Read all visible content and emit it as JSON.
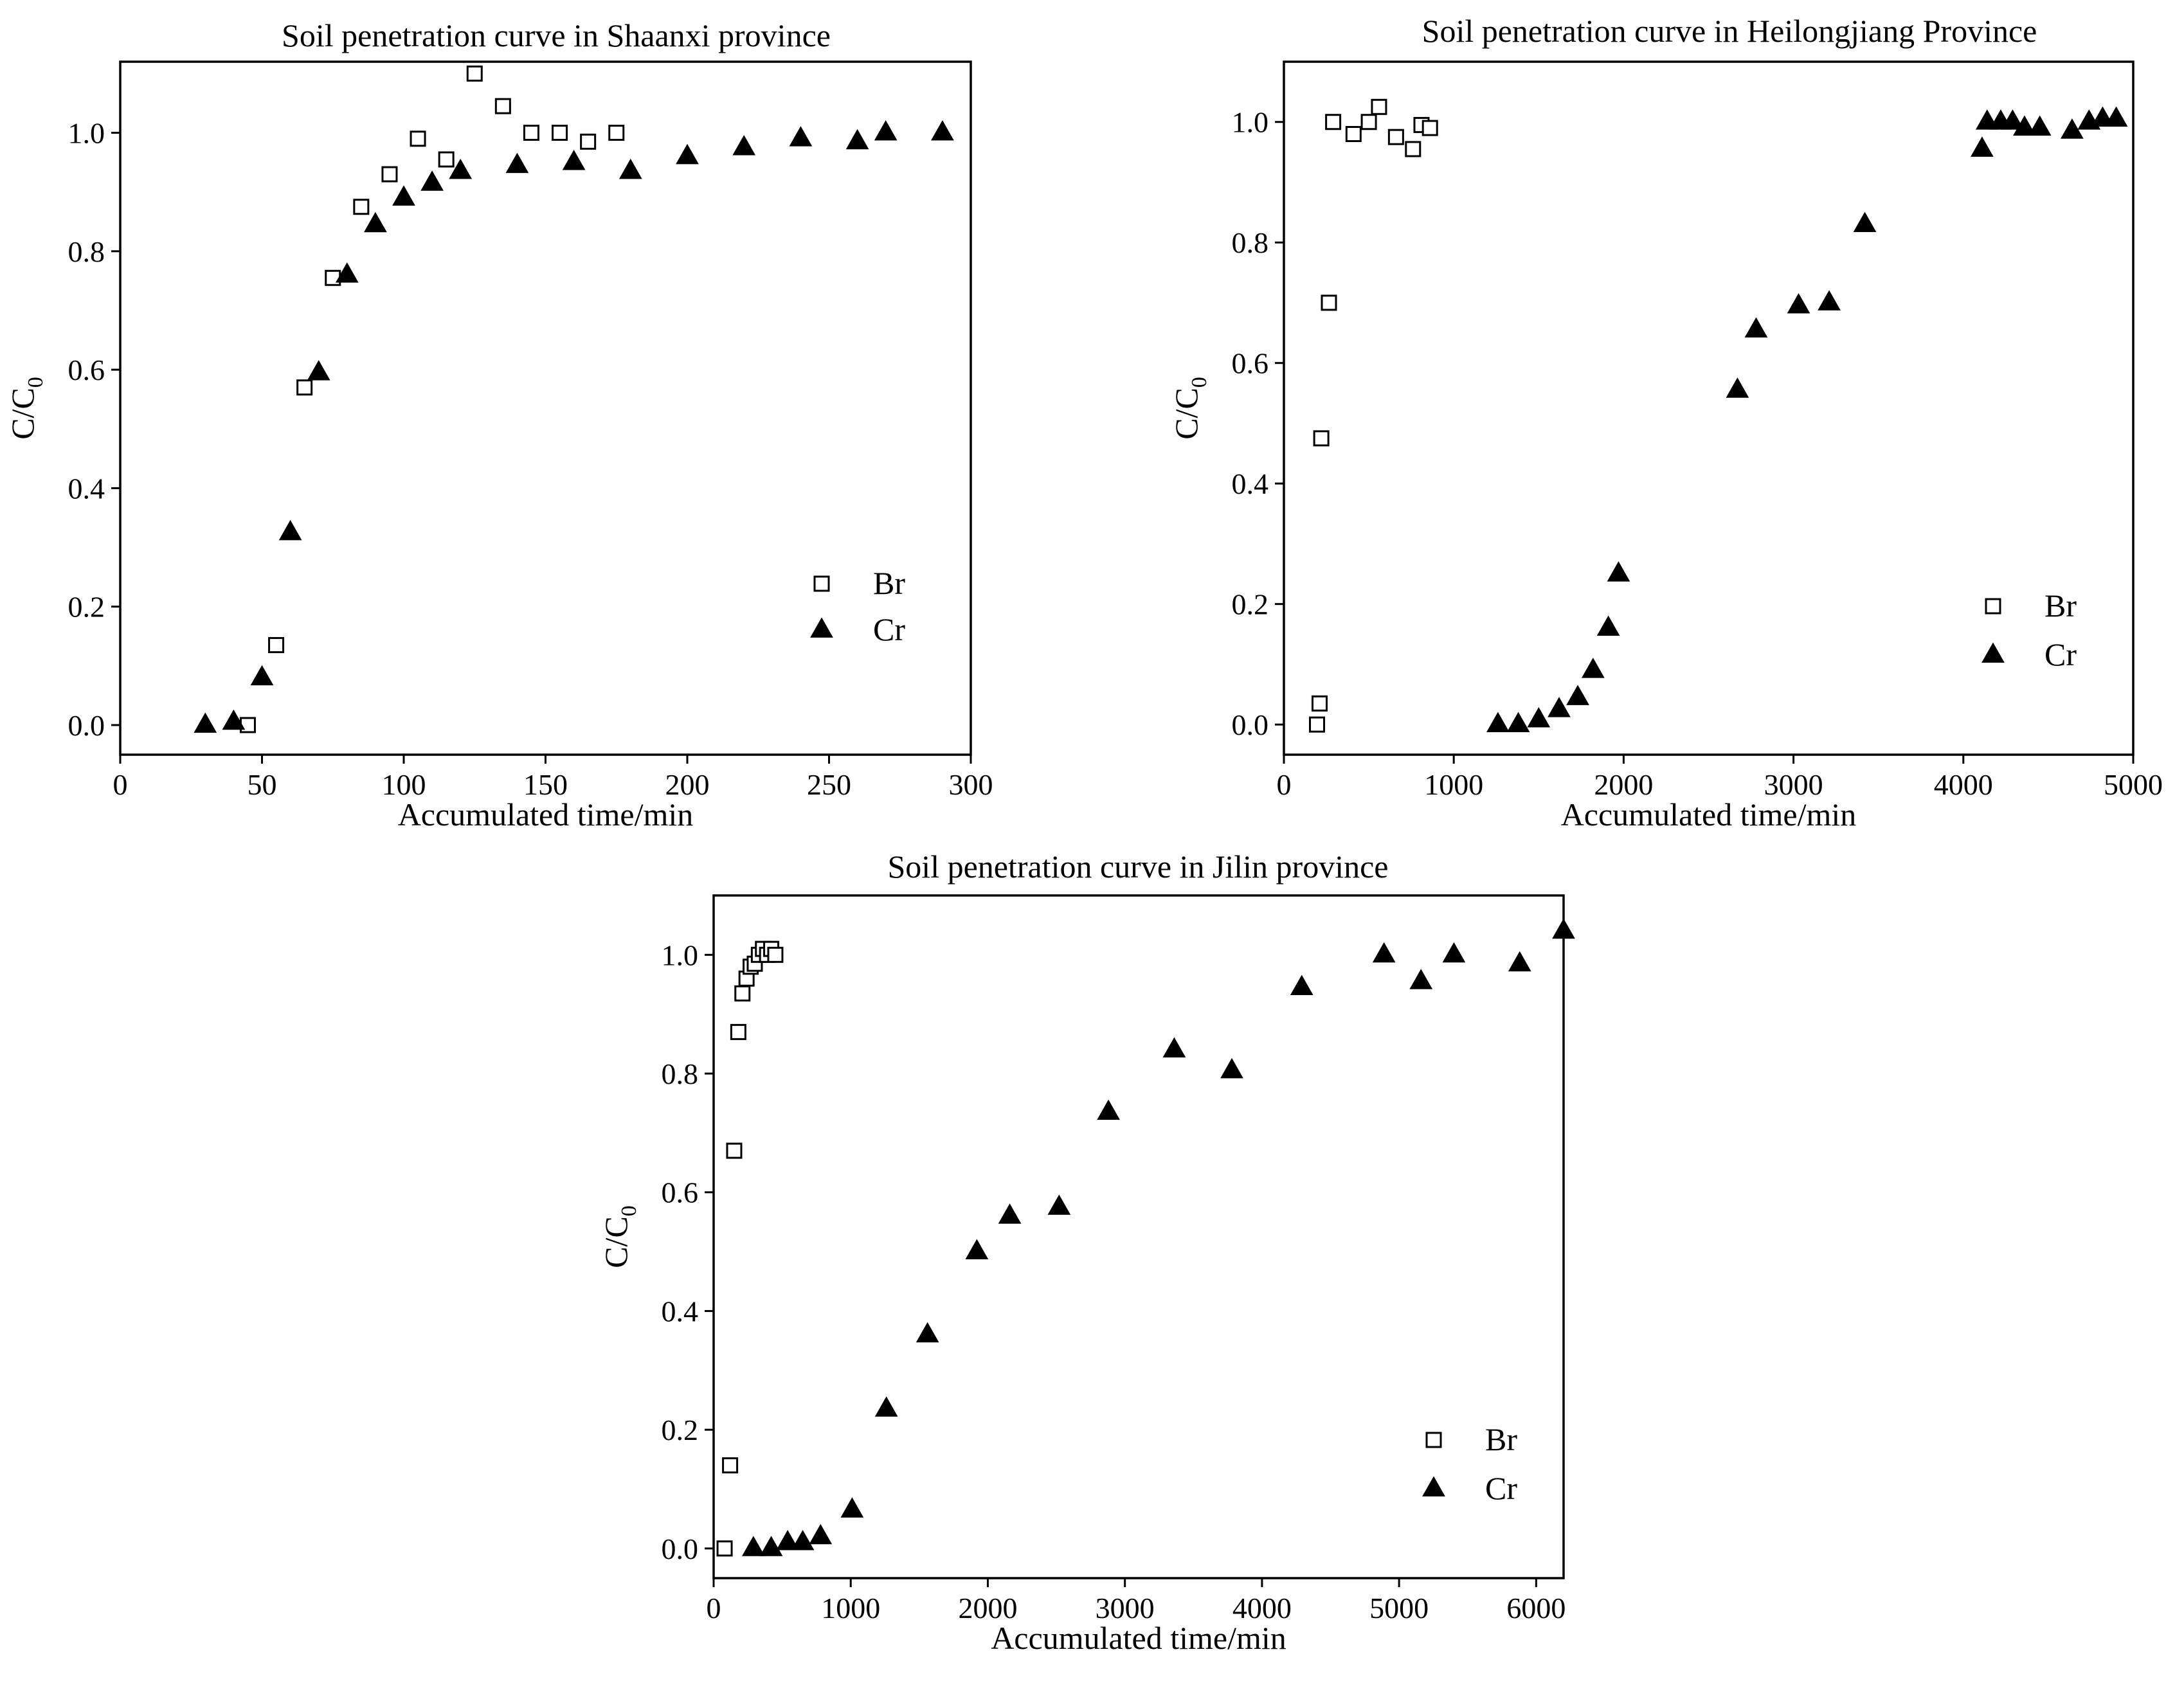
{
  "chart_data": [
    {
      "type": "scatter",
      "title": "Soil penetration curve in Shaanxi province",
      "xlabel": "Accumulated time/min",
      "ylabel": "C/C",
      "ylabel_sub": "0",
      "xlim": [
        0,
        300
      ],
      "ylim": [
        -0.05,
        1.12
      ],
      "xticks": [
        0,
        50,
        100,
        150,
        200,
        250,
        300
      ],
      "yticks": [
        0.0,
        0.2,
        0.4,
        0.6,
        0.8,
        1.0
      ],
      "xtick_labels": [
        "0",
        "50",
        "100",
        "150",
        "200",
        "250",
        "300"
      ],
      "ytick_labels": [
        "0.0",
        "0.2",
        "0.4",
        "0.6",
        "0.8",
        "1.0"
      ],
      "legend_position": "middle-right",
      "series": [
        {
          "name": "Br",
          "marker": "open-square",
          "x": [
            45,
            55,
            65,
            75,
            85,
            95,
            105,
            115,
            125,
            135,
            145,
            155,
            165,
            175
          ],
          "y": [
            0.0,
            0.135,
            0.57,
            0.755,
            0.875,
            0.93,
            0.99,
            0.955,
            1.1,
            1.045,
            1.0,
            1.0,
            0.985,
            1.0
          ]
        },
        {
          "name": "Cr",
          "marker": "filled-triangle",
          "x": [
            30,
            40,
            50,
            60,
            70,
            80,
            90,
            100,
            110,
            120,
            140,
            160,
            180,
            200,
            220,
            240,
            260,
            270,
            290
          ],
          "y": [
            0.0,
            0.005,
            0.08,
            0.325,
            0.595,
            0.76,
            0.845,
            0.89,
            0.915,
            0.935,
            0.945,
            0.95,
            0.935,
            0.96,
            0.975,
            0.99,
            0.985,
            1.0,
            1.0
          ]
        }
      ]
    },
    {
      "type": "scatter",
      "title": "Soil penetration curve in Heilongjiang Province",
      "xlabel": "Accumulated time/min",
      "ylabel": "C/C",
      "ylabel_sub": "0",
      "xlim": [
        0,
        5000
      ],
      "ylim": [
        -0.05,
        1.1
      ],
      "xticks": [
        0,
        1000,
        2000,
        3000,
        4000,
        5000
      ],
      "yticks": [
        0.0,
        0.2,
        0.4,
        0.6,
        0.8,
        1.0
      ],
      "xtick_labels": [
        "0",
        "1000",
        "2000",
        "3000",
        "4000",
        "5000"
      ],
      "ytick_labels": [
        "0.0",
        "0.2",
        "0.4",
        "0.6",
        "0.8",
        "1.0"
      ],
      "legend_position": "lower-right",
      "series": [
        {
          "name": "Br",
          "marker": "open-square",
          "x": [
            195,
            210,
            220,
            265,
            290,
            410,
            500,
            560,
            660,
            760,
            810,
            860
          ],
          "y": [
            0.0,
            0.035,
            0.475,
            0.7,
            1.0,
            0.98,
            1.0,
            1.025,
            0.975,
            0.955,
            0.995,
            0.99
          ]
        },
        {
          "name": "Cr",
          "marker": "filled-triangle",
          "x": [
            1260,
            1380,
            1500,
            1620,
            1730,
            1820,
            1910,
            1970,
            2670,
            2780,
            3030,
            3210,
            3420,
            4110,
            4140,
            4220,
            4290,
            4360,
            4450,
            4640,
            4740,
            4820,
            4900
          ],
          "y": [
            0.0,
            0.0,
            0.008,
            0.025,
            0.045,
            0.09,
            0.16,
            0.25,
            0.555,
            0.655,
            0.695,
            0.7,
            0.83,
            0.955,
            1.0,
            1.0,
            1.0,
            0.99,
            0.99,
            0.985,
            1.0,
            1.005,
            1.005
          ]
        }
      ]
    },
    {
      "type": "scatter",
      "title": "Soil penetration curve in Jilin province",
      "xlabel": "Accumulated time/min",
      "ylabel": "C/C",
      "ylabel_sub": "0",
      "xlim": [
        0,
        6200
      ],
      "ylim": [
        -0.05,
        1.1
      ],
      "xticks": [
        0,
        1000,
        2000,
        3000,
        4000,
        5000,
        6000
      ],
      "yticks": [
        0.0,
        0.2,
        0.4,
        0.6,
        0.8,
        1.0
      ],
      "xtick_labels": [
        "0",
        "1000",
        "2000",
        "3000",
        "4000",
        "5000",
        "6000"
      ],
      "ytick_labels": [
        "0.0",
        "0.2",
        "0.4",
        "0.6",
        "0.8",
        "1.0"
      ],
      "legend_position": "lower-right",
      "series": [
        {
          "name": "Br",
          "marker": "open-square",
          "x": [
            80,
            120,
            150,
            180,
            210,
            240,
            270,
            300,
            330,
            360,
            390,
            420,
            450
          ],
          "y": [
            0.0,
            0.14,
            0.67,
            0.87,
            0.935,
            0.96,
            0.98,
            0.985,
            1.0,
            1.01,
            1.0,
            1.01,
            1.0
          ]
        },
        {
          "name": "Cr",
          "marker": "filled-triangle",
          "x": [
            290,
            420,
            540,
            650,
            780,
            1010,
            1260,
            1560,
            1920,
            2160,
            2520,
            2880,
            3360,
            3780,
            4290,
            4890,
            5160,
            5400,
            5880,
            6200
          ],
          "y": [
            0.0,
            0.0,
            0.01,
            0.01,
            0.02,
            0.065,
            0.235,
            0.36,
            0.5,
            0.56,
            0.575,
            0.735,
            0.84,
            0.805,
            0.945,
            1.0,
            0.955,
            1.0,
            0.985,
            1.04
          ]
        }
      ]
    }
  ]
}
